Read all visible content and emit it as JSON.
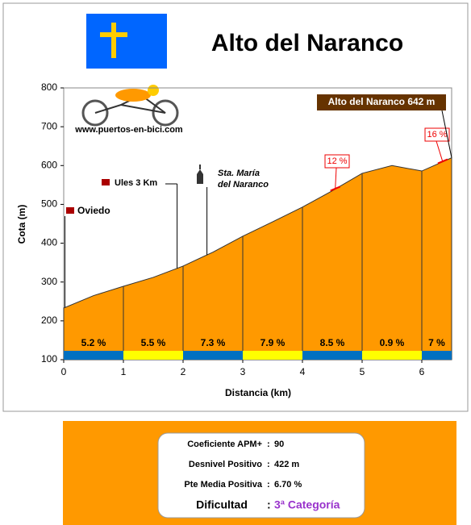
{
  "chart_data": {
    "type": "area",
    "title": "Alto del Naranco",
    "source": "www.puertos-en-bici.com",
    "x_label": "Distancia (km)",
    "y_label": "Cota (m)",
    "x": [
      0,
      0.5,
      1,
      1.5,
      2,
      2.5,
      3,
      3.5,
      4,
      4.5,
      5,
      5.5,
      6,
      6.5
    ],
    "values": [
      233,
      265,
      289,
      312,
      341,
      377,
      418,
      455,
      493,
      535,
      580,
      600,
      586,
      620
    ],
    "color": "#ff9900",
    "xlim": [
      0,
      6.5
    ],
    "ylim": [
      100,
      800
    ],
    "xticks": [
      0,
      1,
      2,
      3,
      4,
      5,
      6
    ],
    "yticks": [
      100,
      200,
      300,
      400,
      500,
      600,
      700,
      800
    ],
    "segments": {
      "bounds": [
        0,
        1,
        2,
        3,
        4,
        5,
        6,
        6.5
      ],
      "values": [
        5.2,
        5.5,
        7.3,
        7.9,
        8.5,
        0.9,
        7
      ],
      "value_labels": [
        "5.2 %",
        "5.5 %",
        "7.3 %",
        "7.9 %",
        "8.5 %",
        "0.9 %",
        "7 %"
      ],
      "colors": [
        "#0070c0",
        "#ffff00",
        "#0070c0",
        "#ffff00",
        "#0070c0",
        "#ffff00",
        "#0070c0"
      ]
    },
    "annotations": [
      "Oviedo",
      "Ules 3 Km",
      [
        "Sta. María",
        "del Naranco"
      ],
      "12 %",
      "16 %",
      "Alto del Naranco 642 m"
    ]
  },
  "info": {
    "separator": ":",
    "rows": [
      {
        "label": "Coeficiente APM+",
        "value": "90"
      },
      {
        "label": "Desnivel Positivo",
        "value": "422 m"
      },
      {
        "label": "Pte Media Positiva",
        "value": "6.70 %"
      }
    ],
    "difficulty": {
      "label": "Dificultad",
      "value": "3ª Categoría"
    }
  }
}
